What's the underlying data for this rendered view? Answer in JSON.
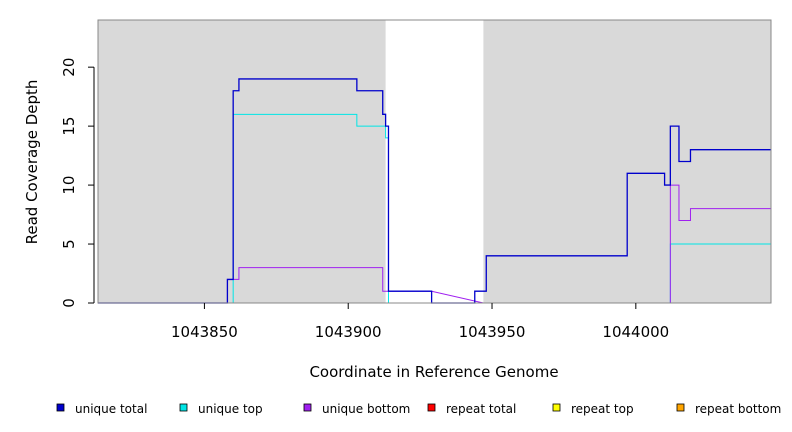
{
  "chart_data": {
    "type": "line",
    "step": true,
    "title": "",
    "xlabel": "Coordinate in Reference Genome",
    "ylabel": "Read Coverage Depth",
    "xlim": [
      1043813,
      1044047
    ],
    "ylim": [
      0,
      24
    ],
    "x_ticks": [
      1043850,
      1043900,
      1043950,
      1044000
    ],
    "x_tick_labels": [
      "1043850",
      "1043900",
      "1043950",
      "1044000"
    ],
    "y_ticks": [
      0,
      5,
      10,
      15,
      20
    ],
    "y_tick_labels": [
      "0",
      "5",
      "10",
      "15",
      "20"
    ],
    "shaded_regions": [
      [
        1043813,
        1043913
      ],
      [
        1043947,
        1044047
      ]
    ],
    "shade_color": "#d9d9d9",
    "legend_position": "bottom",
    "series": [
      {
        "name": "unique total",
        "color": "#0000cc",
        "points": [
          [
            1043813,
            0
          ],
          [
            1043858,
            0
          ],
          [
            1043858,
            2
          ],
          [
            1043860,
            2
          ],
          [
            1043860,
            18
          ],
          [
            1043862,
            18
          ],
          [
            1043862,
            19
          ],
          [
            1043903,
            19
          ],
          [
            1043903,
            18
          ],
          [
            1043912,
            18
          ],
          [
            1043912,
            16
          ],
          [
            1043913,
            16
          ],
          [
            1043913,
            15
          ],
          [
            1043914,
            15
          ],
          [
            1043914,
            1
          ],
          [
            1043929,
            1
          ],
          [
            1043929,
            0
          ],
          [
            1043944,
            0
          ],
          [
            1043944,
            1
          ],
          [
            1043948,
            1
          ],
          [
            1043948,
            4
          ],
          [
            1043997,
            4
          ],
          [
            1043997,
            11
          ],
          [
            1044010,
            11
          ],
          [
            1044010,
            10
          ],
          [
            1044012,
            10
          ],
          [
            1044012,
            15
          ],
          [
            1044015,
            15
          ],
          [
            1044015,
            12
          ],
          [
            1044019,
            12
          ],
          [
            1044019,
            13
          ],
          [
            1044047,
            13
          ]
        ]
      },
      {
        "name": "unique top",
        "color": "#00e5e5",
        "points": [
          [
            1043813,
            0
          ],
          [
            1043860,
            0
          ],
          [
            1043860,
            16
          ],
          [
            1043903,
            16
          ],
          [
            1043903,
            15
          ],
          [
            1043913,
            15
          ],
          [
            1043913,
            14
          ],
          [
            1043914,
            14
          ],
          [
            1043914,
            0
          ],
          [
            1043929,
            0
          ],
          [
            1043947,
            0
          ],
          [
            1044012,
            0
          ],
          [
            1044012,
            5
          ],
          [
            1044047,
            5
          ]
        ]
      },
      {
        "name": "unique bottom",
        "color": "#a020f0",
        "points": [
          [
            1043813,
            0
          ],
          [
            1043858,
            0
          ],
          [
            1043858,
            2
          ],
          [
            1043862,
            2
          ],
          [
            1043862,
            3
          ],
          [
            1043912,
            3
          ],
          [
            1043912,
            1
          ],
          [
            1043929,
            1
          ],
          [
            1043947,
            0
          ],
          [
            1044012,
            0
          ],
          [
            1044012,
            10
          ],
          [
            1044015,
            10
          ],
          [
            1044015,
            7
          ],
          [
            1044019,
            7
          ],
          [
            1044019,
            8
          ],
          [
            1044047,
            8
          ]
        ]
      },
      {
        "name": "repeat total",
        "color": "#ff0000",
        "points": [
          [
            1043813,
            0
          ],
          [
            1043913,
            0
          ],
          [
            1043947,
            0
          ],
          [
            1044047,
            0
          ]
        ]
      },
      {
        "name": "repeat top",
        "color": "#ffff00",
        "points": [
          [
            1043813,
            0
          ],
          [
            1043913,
            0
          ],
          [
            1043947,
            0
          ],
          [
            1044047,
            0
          ]
        ]
      },
      {
        "name": "repeat bottom",
        "color": "#ffa500",
        "points": [
          [
            1043813,
            0
          ],
          [
            1043913,
            0
          ],
          [
            1043947,
            0
          ],
          [
            1044047,
            0
          ]
        ]
      }
    ]
  }
}
